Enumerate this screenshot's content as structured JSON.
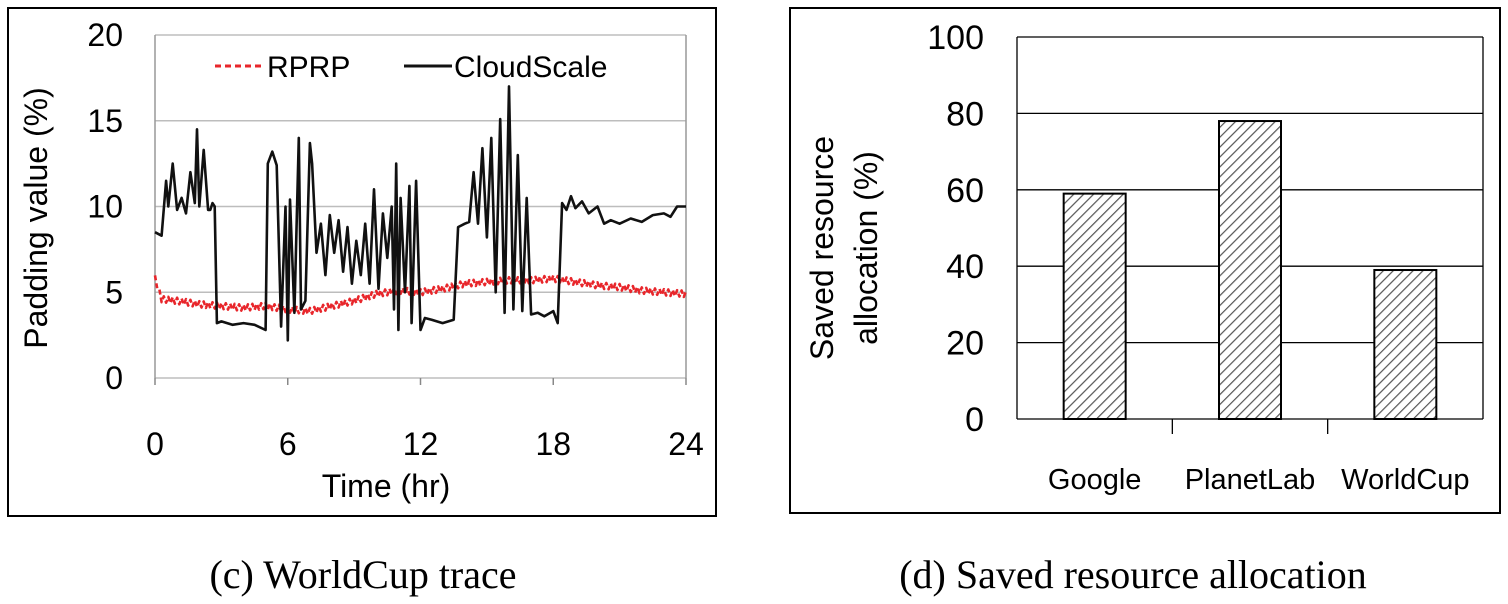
{
  "chart_data": [
    {
      "type": "line",
      "caption": "(c) WorldCup trace",
      "xlabel": "Time (hr)",
      "ylabel": "Padding value (%)",
      "xlim": [
        0,
        24
      ],
      "ylim": [
        0,
        20
      ],
      "xticks": [
        0,
        6,
        12,
        18,
        24
      ],
      "yticks": [
        0,
        5,
        10,
        15,
        20
      ],
      "grid": true,
      "legend_position": "top",
      "series": [
        {
          "name": "RPRP",
          "color": "#e8262b",
          "style": "dashed",
          "x": [
            0,
            0.3,
            1,
            2,
            3,
            4,
            5,
            6,
            7,
            8,
            9,
            10,
            11,
            12,
            13,
            14,
            15,
            16,
            17,
            18,
            19,
            20,
            21,
            22,
            23,
            24
          ],
          "y": [
            5.8,
            4.6,
            4.5,
            4.3,
            4.2,
            4.1,
            4.2,
            4.0,
            3.9,
            4.2,
            4.5,
            4.9,
            5.1,
            5.0,
            5.2,
            5.5,
            5.6,
            5.7,
            5.7,
            5.8,
            5.6,
            5.4,
            5.3,
            5.1,
            5.0,
            4.9
          ]
        },
        {
          "name": "CloudScale",
          "color": "#111111",
          "style": "solid",
          "x": [
            0,
            0.3,
            0.5,
            0.6,
            0.8,
            1.0,
            1.2,
            1.4,
            1.6,
            1.8,
            1.9,
            2.0,
            2.2,
            2.4,
            2.5,
            2.6,
            2.7,
            2.8,
            3.0,
            3.5,
            4.0,
            4.5,
            5.0,
            5.1,
            5.3,
            5.5,
            5.7,
            5.9,
            6.0,
            6.1,
            6.3,
            6.5,
            6.6,
            6.8,
            7.0,
            7.1,
            7.3,
            7.5,
            7.7,
            7.9,
            8.1,
            8.3,
            8.5,
            8.7,
            8.9,
            9.1,
            9.3,
            9.5,
            9.7,
            9.9,
            10.1,
            10.3,
            10.5,
            10.7,
            10.8,
            10.9,
            11.0,
            11.1,
            11.3,
            11.5,
            11.6,
            11.8,
            12.0,
            12.2,
            12.5,
            13.0,
            13.5,
            13.7,
            14.0,
            14.2,
            14.4,
            14.6,
            14.8,
            15.0,
            15.2,
            15.4,
            15.6,
            15.8,
            16.0,
            16.2,
            16.4,
            16.6,
            16.8,
            17.0,
            17.3,
            17.6,
            18.0,
            18.2,
            18.4,
            18.6,
            18.8,
            19.0,
            19.3,
            19.6,
            20.0,
            20.3,
            20.6,
            21.0,
            21.5,
            22.0,
            22.5,
            23.0,
            23.3,
            23.6,
            24.0
          ],
          "y": [
            8.5,
            8.3,
            11.5,
            10.0,
            12.5,
            9.8,
            10.5,
            9.6,
            12.0,
            10.2,
            14.5,
            10.0,
            13.3,
            9.8,
            9.8,
            10.2,
            10.0,
            3.2,
            3.3,
            3.1,
            3.2,
            3.1,
            2.8,
            12.5,
            13.2,
            12.4,
            3.0,
            10.0,
            2.2,
            10.4,
            3.8,
            14.0,
            4.0,
            4.5,
            13.7,
            12.5,
            7.3,
            9.0,
            6.0,
            9.5,
            7.3,
            9.2,
            6.2,
            8.8,
            5.5,
            8.0,
            6.0,
            9.0,
            5.5,
            11.0,
            5.2,
            9.6,
            7.0,
            10.0,
            4.0,
            12.5,
            2.8,
            10.5,
            5.0,
            11.2,
            3.2,
            11.5,
            2.8,
            3.5,
            3.4,
            3.2,
            3.4,
            8.8,
            9.0,
            9.1,
            12.0,
            9.0,
            13.4,
            8.2,
            14.0,
            5.0,
            15.1,
            3.8,
            17.0,
            4.0,
            13.0,
            3.9,
            10.5,
            3.7,
            3.8,
            3.6,
            3.9,
            3.2,
            10.2,
            9.8,
            10.6,
            9.9,
            10.3,
            9.6,
            10.0,
            9.0,
            9.2,
            9.0,
            9.3,
            9.1,
            9.5,
            9.6,
            9.4,
            10.0,
            10.0
          ]
        }
      ]
    },
    {
      "type": "bar",
      "caption": "(d) Saved resource allocation",
      "ylabel_line1": "Saved resource",
      "ylabel_line2": "allocation (%)",
      "categories": [
        "Google",
        "PlanetLab",
        "WorldCup"
      ],
      "values": [
        59,
        78,
        39
      ],
      "ylim": [
        0,
        100
      ],
      "yticks": [
        0,
        20,
        40,
        60,
        80,
        100
      ],
      "grid": true,
      "bar_fill": "hatched"
    }
  ]
}
